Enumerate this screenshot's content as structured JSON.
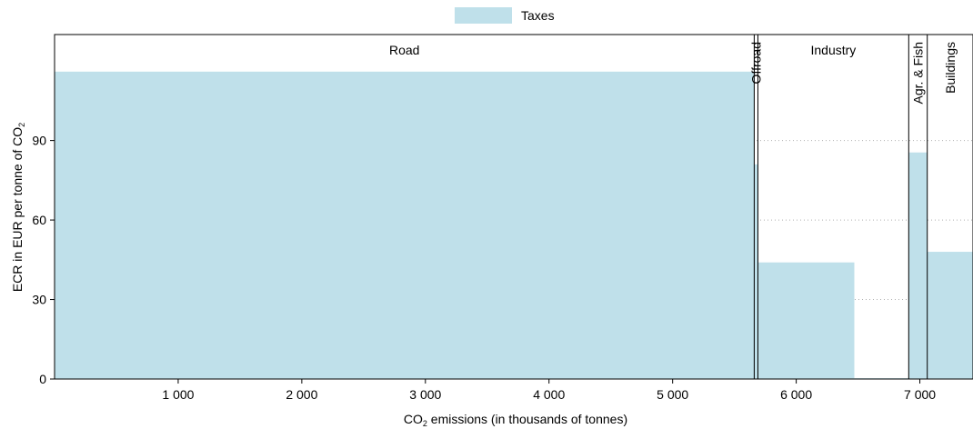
{
  "chart_data": {
    "type": "bar",
    "legend": {
      "position": "top-center",
      "entries": [
        {
          "name": "Taxes",
          "color": "#bfe0ea"
        }
      ]
    },
    "xlabel_main": "CO",
    "xlabel_sub": "2",
    "xlabel_rest": " emissions (in thousands of tonnes)",
    "ylabel_main": "ECR in EUR per tonne of CO",
    "ylabel_sub": "2",
    "xlim": [
      0,
      7430
    ],
    "ylim": [
      0,
      130
    ],
    "x_ticks": [
      {
        "value": 1000,
        "label": "1 000"
      },
      {
        "value": 2000,
        "label": "2 000"
      },
      {
        "value": 3000,
        "label": "3 000"
      },
      {
        "value": 4000,
        "label": "4 000"
      },
      {
        "value": 5000,
        "label": "5 000"
      },
      {
        "value": 6000,
        "label": "6 000"
      },
      {
        "value": 7000,
        "label": "7 000"
      }
    ],
    "y_ticks": [
      {
        "value": 0,
        "label": "0"
      },
      {
        "value": 30,
        "label": "30"
      },
      {
        "value": 60,
        "label": "60"
      },
      {
        "value": 90,
        "label": "90"
      }
    ],
    "grid": "horizontal dotted",
    "sectors": [
      {
        "name": "Road",
        "start": 0,
        "end": 5660,
        "label_orientation": "horizontal"
      },
      {
        "name": "Offroad",
        "start": 5660,
        "end": 5690,
        "label_orientation": "vertical"
      },
      {
        "name": "Industry",
        "start": 5690,
        "end": 6910,
        "label_orientation": "horizontal"
      },
      {
        "name": "Agr. & Fish",
        "start": 6910,
        "end": 7060,
        "label_orientation": "vertical"
      },
      {
        "name": "Buildings",
        "start": 7060,
        "end": 7430,
        "label_orientation": "vertical"
      }
    ],
    "series": [
      {
        "name": "Taxes",
        "color": "#bfe0ea",
        "bars": [
          {
            "sector": "Road",
            "x_start": 0,
            "x_end": 5660,
            "value": 116
          },
          {
            "sector": "Offroad",
            "x_start": 5660,
            "x_end": 5690,
            "value": 81
          },
          {
            "sector": "Industry",
            "x_start": 5690,
            "x_end": 6470,
            "value": 44
          },
          {
            "sector": "Industry",
            "x_start": 6470,
            "x_end": 6910,
            "value": 0.3
          },
          {
            "sector": "Agr. & Fish",
            "x_start": 6910,
            "x_end": 7060,
            "value": 85.5
          },
          {
            "sector": "Buildings",
            "x_start": 7060,
            "x_end": 7430,
            "value": 48
          }
        ]
      }
    ]
  }
}
